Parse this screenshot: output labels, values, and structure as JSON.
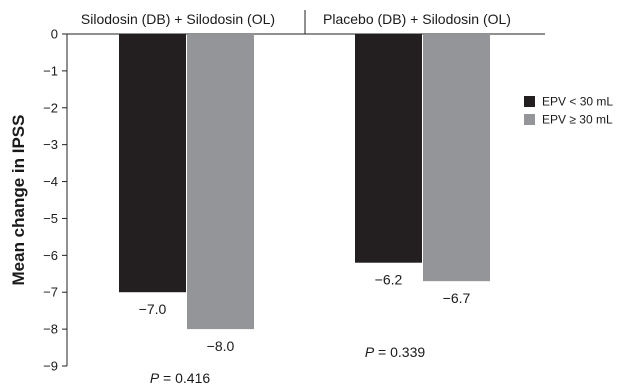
{
  "chart_data": {
    "type": "bar",
    "title": "",
    "xlabel": "",
    "ylabel": "Mean change in IPSS",
    "ylim": [
      -9,
      0
    ],
    "yticks": [
      0,
      -1,
      -2,
      -3,
      -4,
      -5,
      -6,
      -7,
      -8,
      -9
    ],
    "ytick_labels": [
      "0",
      "−1",
      "−2",
      "−3",
      "−4",
      "−5",
      "−6",
      "−7",
      "−8",
      "−9"
    ],
    "categories": [
      "Silodosin (DB) + Silodosin (OL)",
      "Placebo (DB) + Silodosin (OL)"
    ],
    "series": [
      {
        "name": "EPV < 30 mL",
        "color": "#231f20",
        "values": [
          -7.0,
          -6.2
        ],
        "labels": [
          "−7.0",
          "−6.2"
        ]
      },
      {
        "name": "EPV ≥ 30 mL",
        "color": "#939598",
        "values": [
          -8.0,
          -6.7
        ],
        "labels": [
          "−8.0",
          "−6.7"
        ]
      }
    ],
    "p_values": [
      {
        "prefix": "P",
        "text": " = 0.416"
      },
      {
        "prefix": "P",
        "text": " = 0.339"
      }
    ],
    "legend": {
      "position": "right"
    },
    "grid": false
  }
}
